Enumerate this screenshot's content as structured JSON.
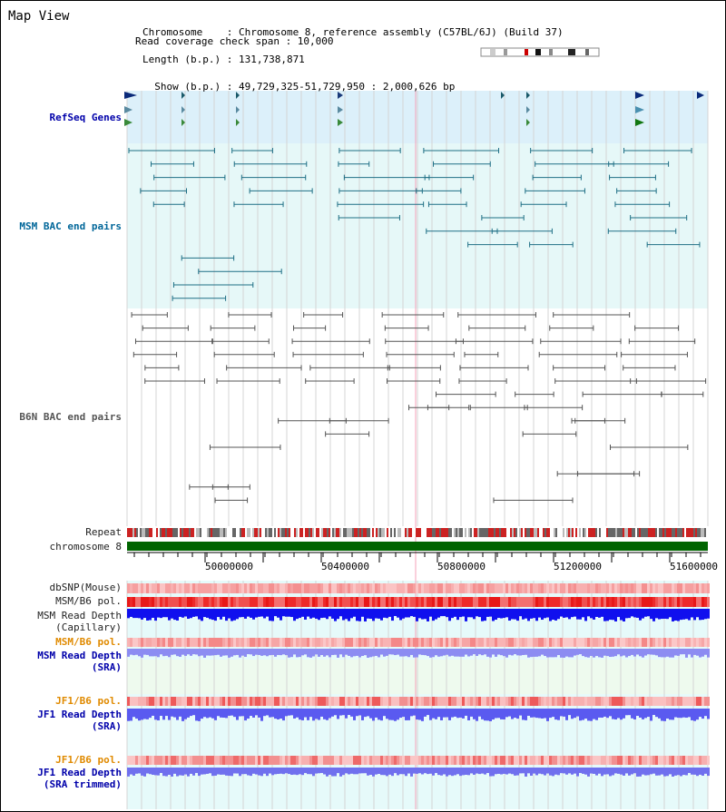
{
  "header": {
    "title": "Map View",
    "info_lines": [
      "Chromosome    : Chromosome 8, reference assembly (C57BL/6J) (Build 37)",
      "Length (b.p.) : 131,738,871",
      "  Show (b.p.) : 49,729,325-51,729,950 : 2,000,626 bp",
      "Read coverage check span : 10,000"
    ]
  },
  "tracks": {
    "refseq": "RefSeq Genes",
    "msm_bac": "MSM BAC end pairs",
    "b6n_bac": "B6N BAC end pairs",
    "repeat": "Repeat",
    "chromosome": "chromosome 8",
    "dbsnp": "dbSNP(Mouse)",
    "msm_b6_pol": "MSM/B6 pol.",
    "msm_depth_cap_1": "MSM Read Depth",
    "msm_depth_cap_2": "(Capillary)",
    "msm_b6_pol_sra": "MSM/B6 pol.",
    "msm_depth_sra_1": "MSM Read Depth",
    "msm_depth_sra_2": "(SRA)",
    "jf1_b6_pol": "JF1/B6 pol.",
    "jf1_depth_1": "JF1 Read Depth",
    "jf1_depth_2": "(SRA)",
    "jf1_b6_pol_trim": "JF1/B6 pol.",
    "jf1_depth_trim_1": "JF1 Read Depth",
    "jf1_depth_trim_2": "(SRA trimmed)"
  },
  "axis": {
    "ticks": [
      "50000000",
      "50400000",
      "50800000",
      "51200000",
      "51600000"
    ]
  },
  "colors": {
    "refseq_bg": "#dcf0fa",
    "msm_bg": "#e6f8f8",
    "depth_blue": "#1010ee",
    "depth_light": "#8c8cf2",
    "pol_red": "#ee3333",
    "chromosome_green": "#006400"
  }
}
